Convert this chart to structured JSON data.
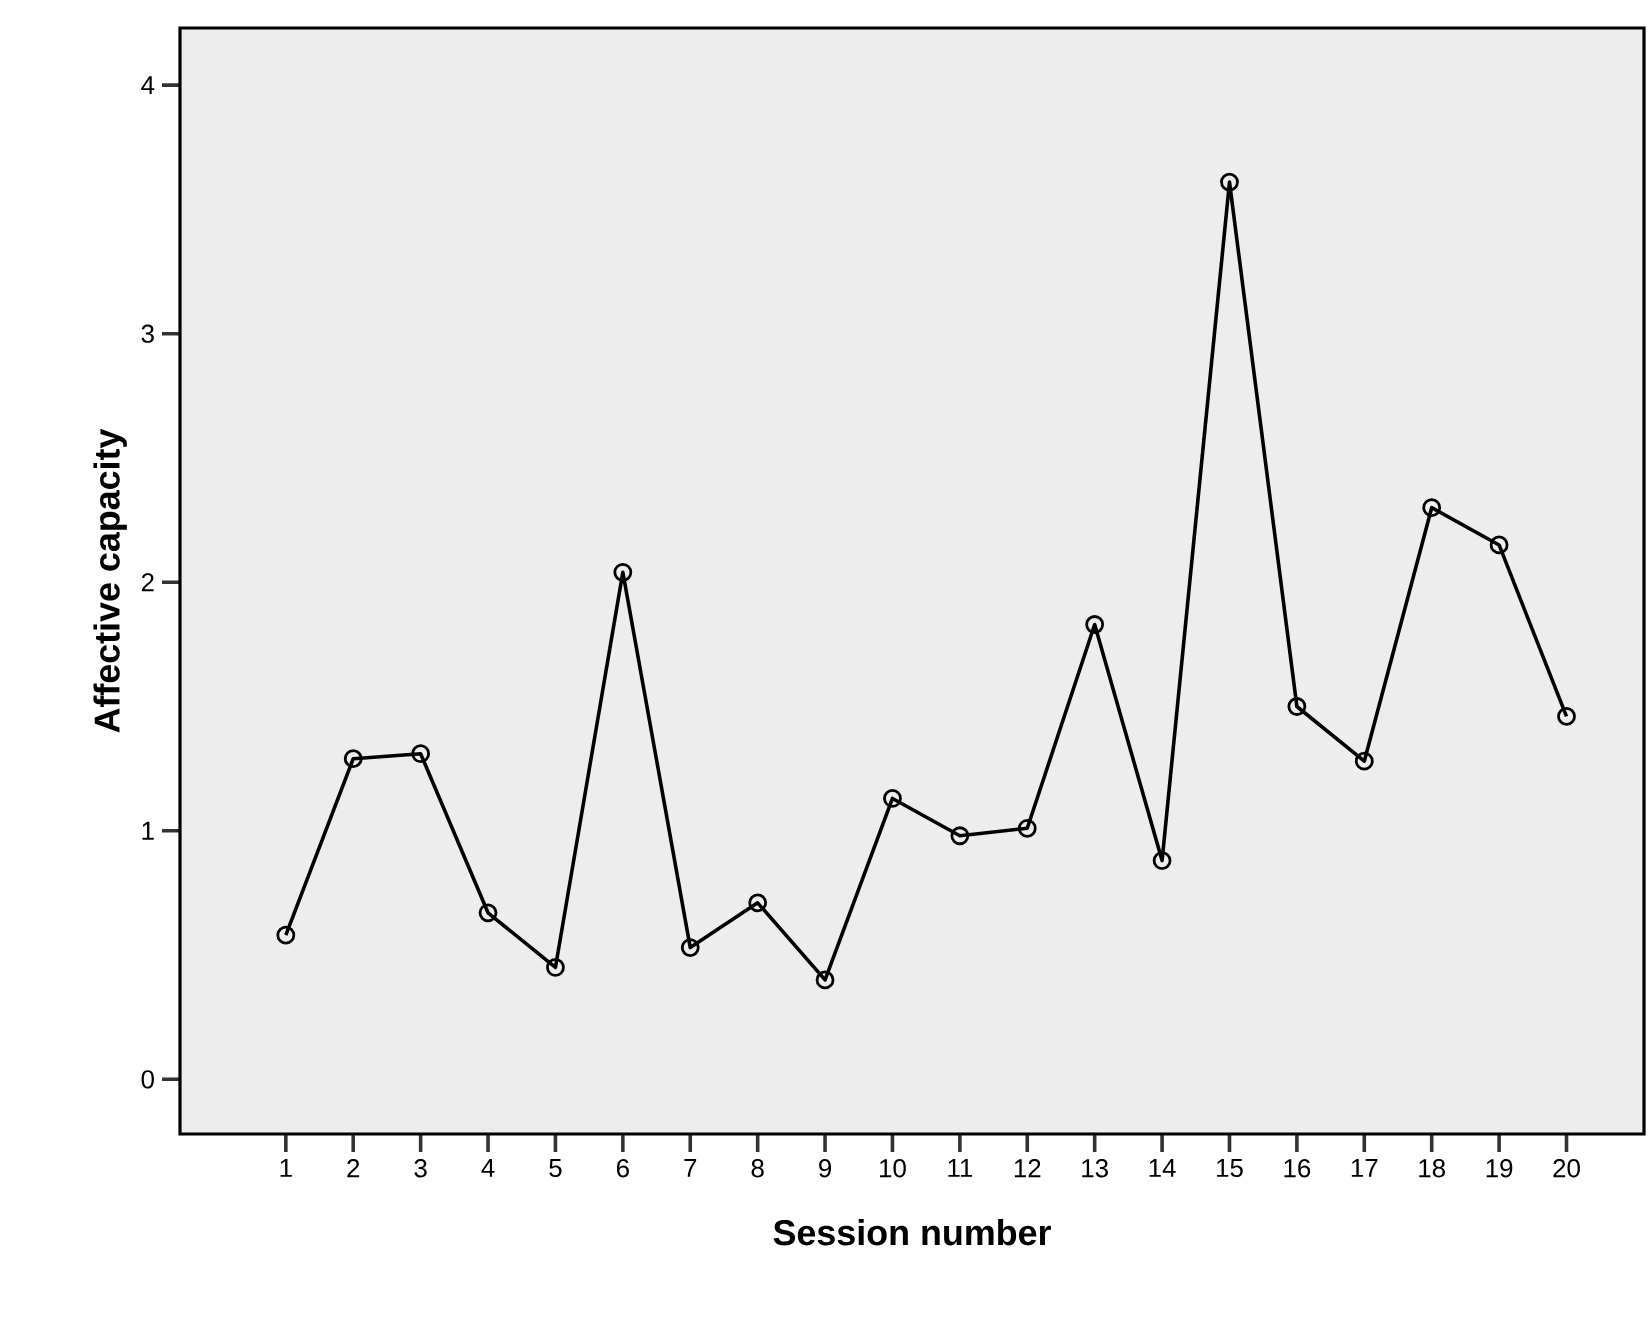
{
  "chart_data": {
    "type": "line",
    "xlabel": "Session number",
    "ylabel": "Affective capacity",
    "categories": [
      "1",
      "2",
      "3",
      "4",
      "5",
      "6",
      "7",
      "8",
      "9",
      "10",
      "11",
      "12",
      "13",
      "14",
      "15",
      "16",
      "17",
      "18",
      "19",
      "20"
    ],
    "values": [
      0.58,
      1.29,
      1.31,
      0.67,
      0.45,
      2.04,
      0.53,
      0.71,
      0.4,
      1.13,
      0.98,
      1.01,
      1.83,
      0.88,
      3.61,
      1.5,
      1.28,
      2.3,
      2.15,
      1.46
    ],
    "color": "#000000",
    "ylim": [
      -0.22,
      4.23
    ],
    "yticks": [
      0,
      1,
      2,
      3,
      4
    ],
    "marker": "circle",
    "line_style": "solid"
  }
}
